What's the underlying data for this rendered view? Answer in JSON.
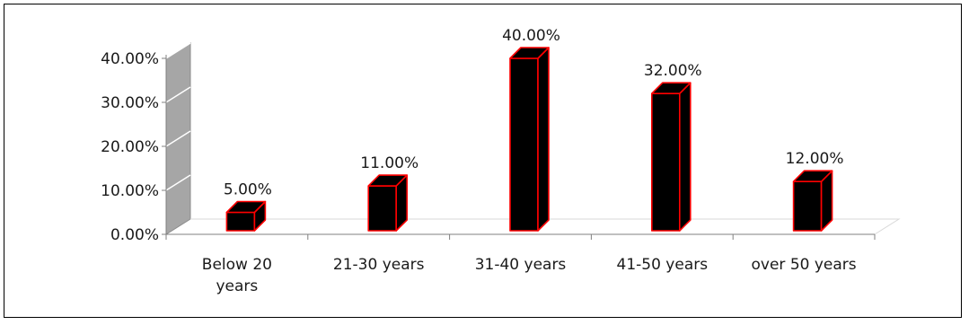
{
  "chart_data": {
    "type": "bar",
    "style": "3d-column",
    "title": "",
    "xlabel": "",
    "ylabel": "",
    "categories": [
      "Below 20 years",
      "21-30 years",
      "31-40 years",
      "41-50 years",
      "over 50 years"
    ],
    "category_lines": [
      [
        "Below 20",
        "years"
      ],
      [
        "21-30 years"
      ],
      [
        "31-40 years"
      ],
      [
        "41-50 years"
      ],
      [
        "over 50 years"
      ]
    ],
    "values": [
      5,
      11,
      40,
      32,
      12
    ],
    "data_labels": [
      "5.00%",
      "11.00%",
      "40.00%",
      "32.00%",
      "12.00%"
    ],
    "ylim": [
      0,
      40
    ],
    "yticks": [
      0,
      10,
      20,
      30,
      40
    ],
    "ytick_labels": [
      "0.00%",
      "10.00%",
      "20.00%",
      "30.00%",
      "40.00%"
    ],
    "grid": true,
    "legend": "none",
    "colors": {
      "bar_fill": "#000000",
      "bar_edge": "#ff0000",
      "back_wall": "#a6a6a6",
      "grid": "#ffffff",
      "axis": "#808080"
    }
  }
}
